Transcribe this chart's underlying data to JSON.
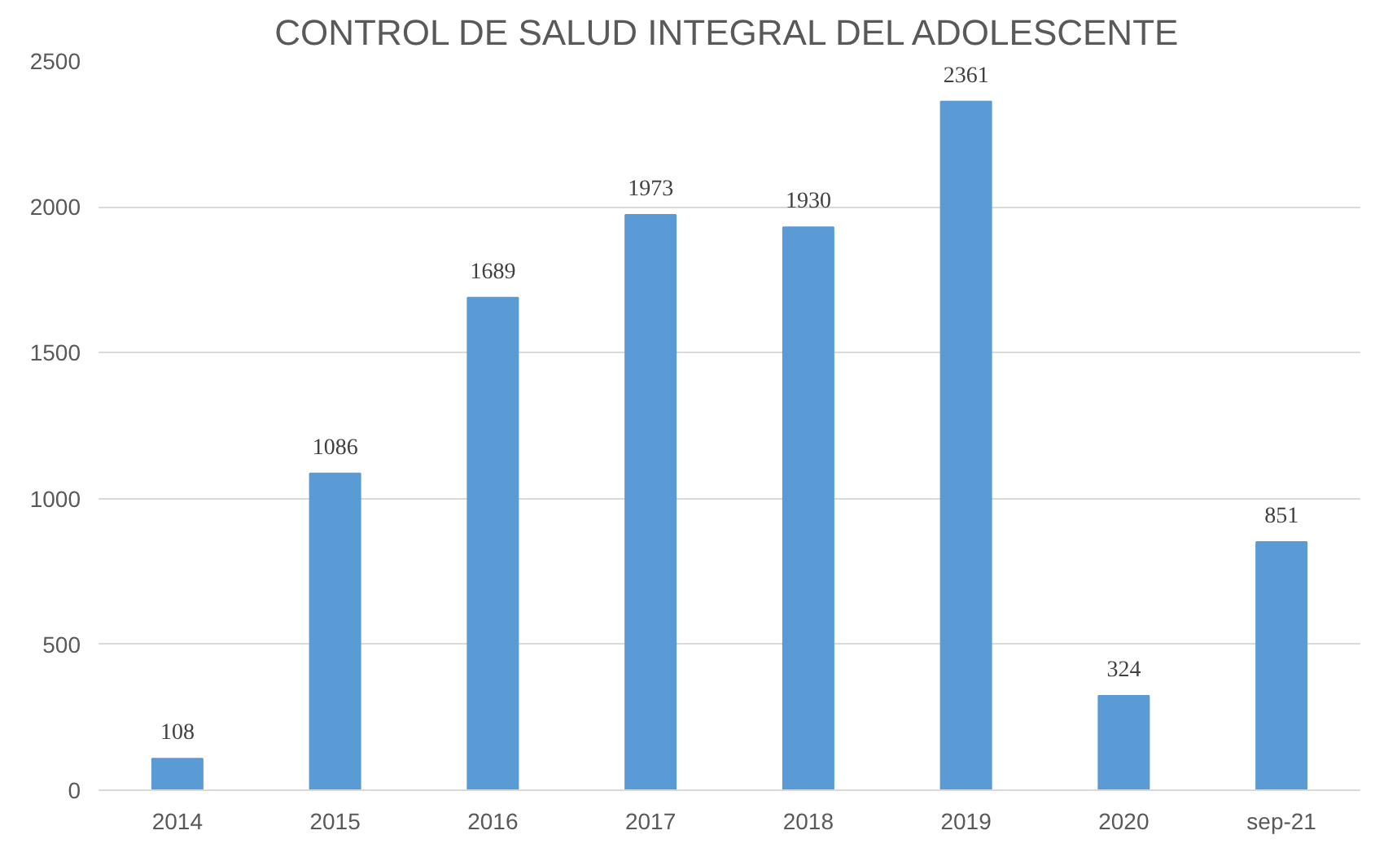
{
  "chart_data": {
    "type": "bar",
    "title": "CONTROL DE SALUD INTEGRAL DEL ADOLESCENTE",
    "categories": [
      "2014",
      "2015",
      "2016",
      "2017",
      "2018",
      "2019",
      "2020",
      "sep-21"
    ],
    "values": [
      108,
      1086,
      1689,
      1973,
      1930,
      2361,
      324,
      851
    ],
    "color": "#5b9bd5",
    "ylim": [
      0,
      2500
    ],
    "yticks": [
      0,
      500,
      1000,
      1500,
      2000,
      2500
    ],
    "grid": "y",
    "data_labels": true
  }
}
